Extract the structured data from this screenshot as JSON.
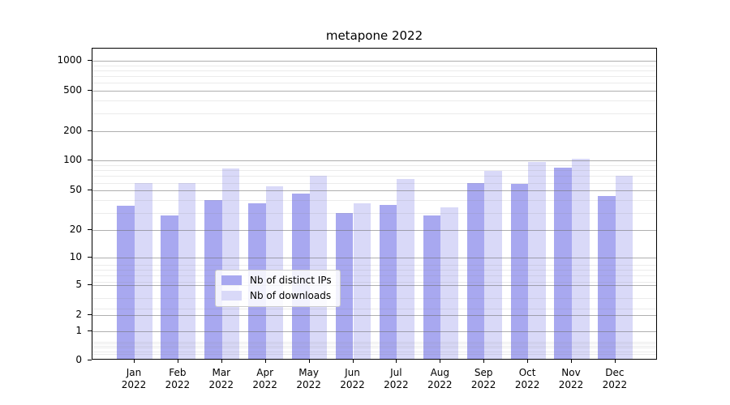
{
  "chart_data": {
    "type": "bar",
    "title": "metapone 2022",
    "categories": [
      "Jan",
      "Feb",
      "Mar",
      "Apr",
      "May",
      "Jun",
      "Jul",
      "Aug",
      "Sep",
      "Oct",
      "Nov",
      "Dec"
    ],
    "category_year": "2022",
    "series": [
      {
        "name": "Nb of distinct IPs",
        "color": "#a8a8f0",
        "values": [
          34,
          27,
          39,
          36,
          45,
          29,
          35,
          27,
          58,
          56,
          82,
          43
        ]
      },
      {
        "name": "Nb of downloads",
        "color": "#d9d9f8",
        "values": [
          57,
          57,
          80,
          53,
          68,
          36,
          63,
          33,
          76,
          93,
          101,
          68
        ]
      }
    ],
    "yscale": "symlog",
    "yticks": [
      0,
      1,
      2,
      5,
      10,
      20,
      50,
      100,
      200,
      500,
      1000
    ],
    "ylim": [
      0,
      1300
    ],
    "grid": true,
    "legend_position": "lower center",
    "colors": {
      "bar_distinct_ips": "#a8a8f0",
      "bar_downloads": "#d9d9f8",
      "grid_major": "#b0b0b0",
      "grid_minor": "#e8e8e8",
      "axis": "#000000"
    }
  }
}
